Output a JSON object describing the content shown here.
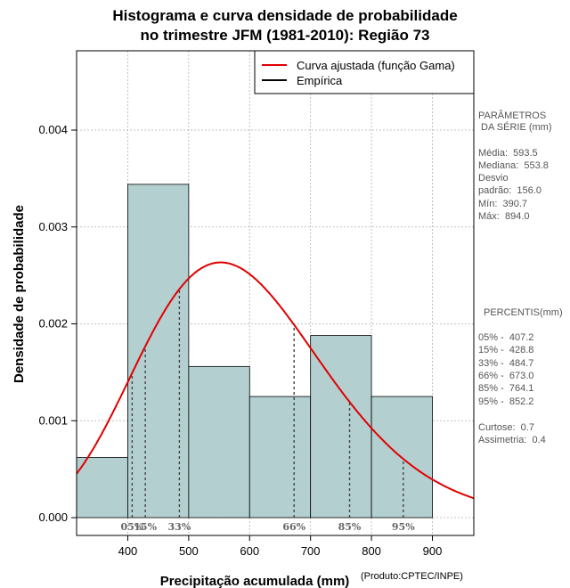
{
  "chart_data": {
    "type": "histogram",
    "title_line1": "Histograma e curva densidade de probabilidade",
    "title_line2": "no trimestre JFM (1981-2010): Região 73",
    "xlabel": "Precipitação acumulada (mm)",
    "ylabel": "Densidade de probabilidade",
    "credit": "(Produto:CPTEC/INPE)",
    "xlim": [
      316,
      968
    ],
    "ylim": [
      0,
      0.0048
    ],
    "x_ticks": [
      400,
      500,
      600,
      700,
      800,
      900
    ],
    "x_tick_labels": [
      "400",
      "500",
      "600",
      "700",
      "800",
      "900"
    ],
    "y_ticks": [
      0.0,
      0.001,
      0.002,
      0.003,
      0.004
    ],
    "y_tick_labels": [
      "0.000",
      "0.001",
      "0.002",
      "0.003",
      "0.004"
    ],
    "grid": true,
    "bars": [
      {
        "x0": 316,
        "x1": 400,
        "density": 0.00062
      },
      {
        "x0": 400,
        "x1": 500,
        "density": 0.00344
      },
      {
        "x0": 500,
        "x1": 600,
        "density": 0.00156
      },
      {
        "x0": 600,
        "x1": 700,
        "density": 0.00125
      },
      {
        "x0": 700,
        "x1": 800,
        "density": 0.00188
      },
      {
        "x0": 800,
        "x1": 900,
        "density": 0.00125
      }
    ],
    "bar_color": "#b4cfcf",
    "curve_color": "#e00000",
    "gamma_fit": {
      "mean": 593.5,
      "sd": 156.0
    },
    "legend": [
      {
        "label": "Curva ajustada (função Gama)",
        "color": "#e00000"
      },
      {
        "label": "Empírica",
        "color": "#000000"
      }
    ],
    "legend_position": "top-right",
    "percentile_markers": [
      {
        "label": "05%",
        "value": 407.2
      },
      {
        "label": "15%",
        "value": 428.8
      },
      {
        "label": "33%",
        "value": 484.7
      },
      {
        "label": "66%",
        "value": 673.0
      },
      {
        "label": "85%",
        "value": 764.1
      },
      {
        "label": "95%",
        "value": 852.2
      }
    ]
  },
  "side_panel": {
    "params_title_1": "PARÂMETROS",
    "params_title_2": " DA SÉRIE (mm)",
    "media": "Média:  593.5",
    "mediana": "Mediana:  553.8",
    "desvio_1": "Desvio",
    "desvio_2": "padrão:  156.0",
    "min": "Mín:  390.7",
    "max": "Máx:  894.0",
    "percentis_title": "PERCENTIS(mm)",
    "p05": "05% -  407.2",
    "p15": "15% -  428.8",
    "p33": "33% -  484.7",
    "p66": "66% -  673.0",
    "p85": "85% -  764.1",
    "p95": "95% -  852.2",
    "curtose": "Curtose:  0.7",
    "assimetria": "Assimetria:  0.4"
  }
}
